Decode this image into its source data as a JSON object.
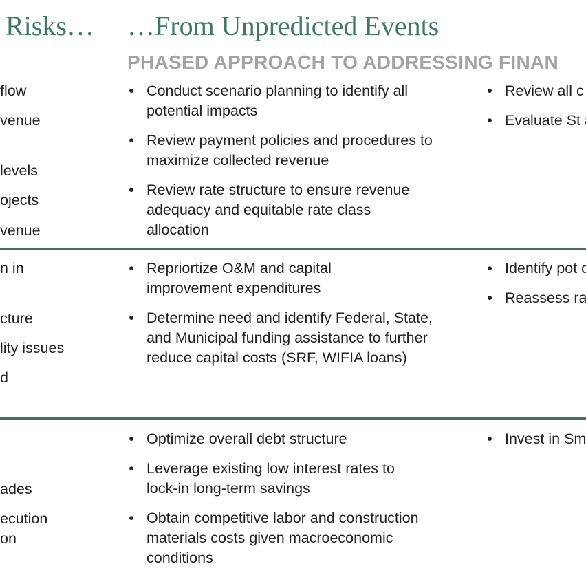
{
  "heading_left": "Risks…",
  "heading_mid": "…From Unpredicted Events",
  "subheading": "PHASED APPROACH TO ADDRESSING FINAN",
  "bullet_glyph": "•",
  "rows": [
    {
      "left_lines": [
        "flow",
        "venue",
        "",
        "levels",
        "ojects",
        "venue"
      ],
      "mid_bullets": [
        "Conduct scenario planning to identify all\npotential impacts",
        "Review payment policies and procedures to\nmaximize collected revenue",
        "Review rate structure to ensure revenue\nadequacy and equitable rate class\nallocation"
      ],
      "right_bullets": [
        "Review all c",
        "Evaluate St\nassistance"
      ]
    },
    {
      "left_lines": [
        "n in",
        "",
        "cture",
        "lity issues",
        "d"
      ],
      "mid_bullets": [
        "Repriortize O&M and capital\nimprovement expenditures",
        "Determine need and identify Federal, State,\nand Municipal funding assistance to further\nreduce capital costs (SRF, WIFIA loans)"
      ],
      "right_bullets": [
        "Identify pot\ncross-traini\noperations",
        "Reassess ra\nchanges in"
      ]
    },
    {
      "left_lines": [
        "",
        "",
        "ades",
        "ecution",
        "on"
      ],
      "mid_bullets": [
        "Optimize overall debt structure",
        "Leverage existing low interest rates to\nlock-in long-term savings",
        "Obtain competitive labor and construction\nmaterials costs given macroeconomic\nconditions"
      ],
      "right_bullets": [
        "Invest in Sm\nincluding Ac"
      ]
    }
  ]
}
